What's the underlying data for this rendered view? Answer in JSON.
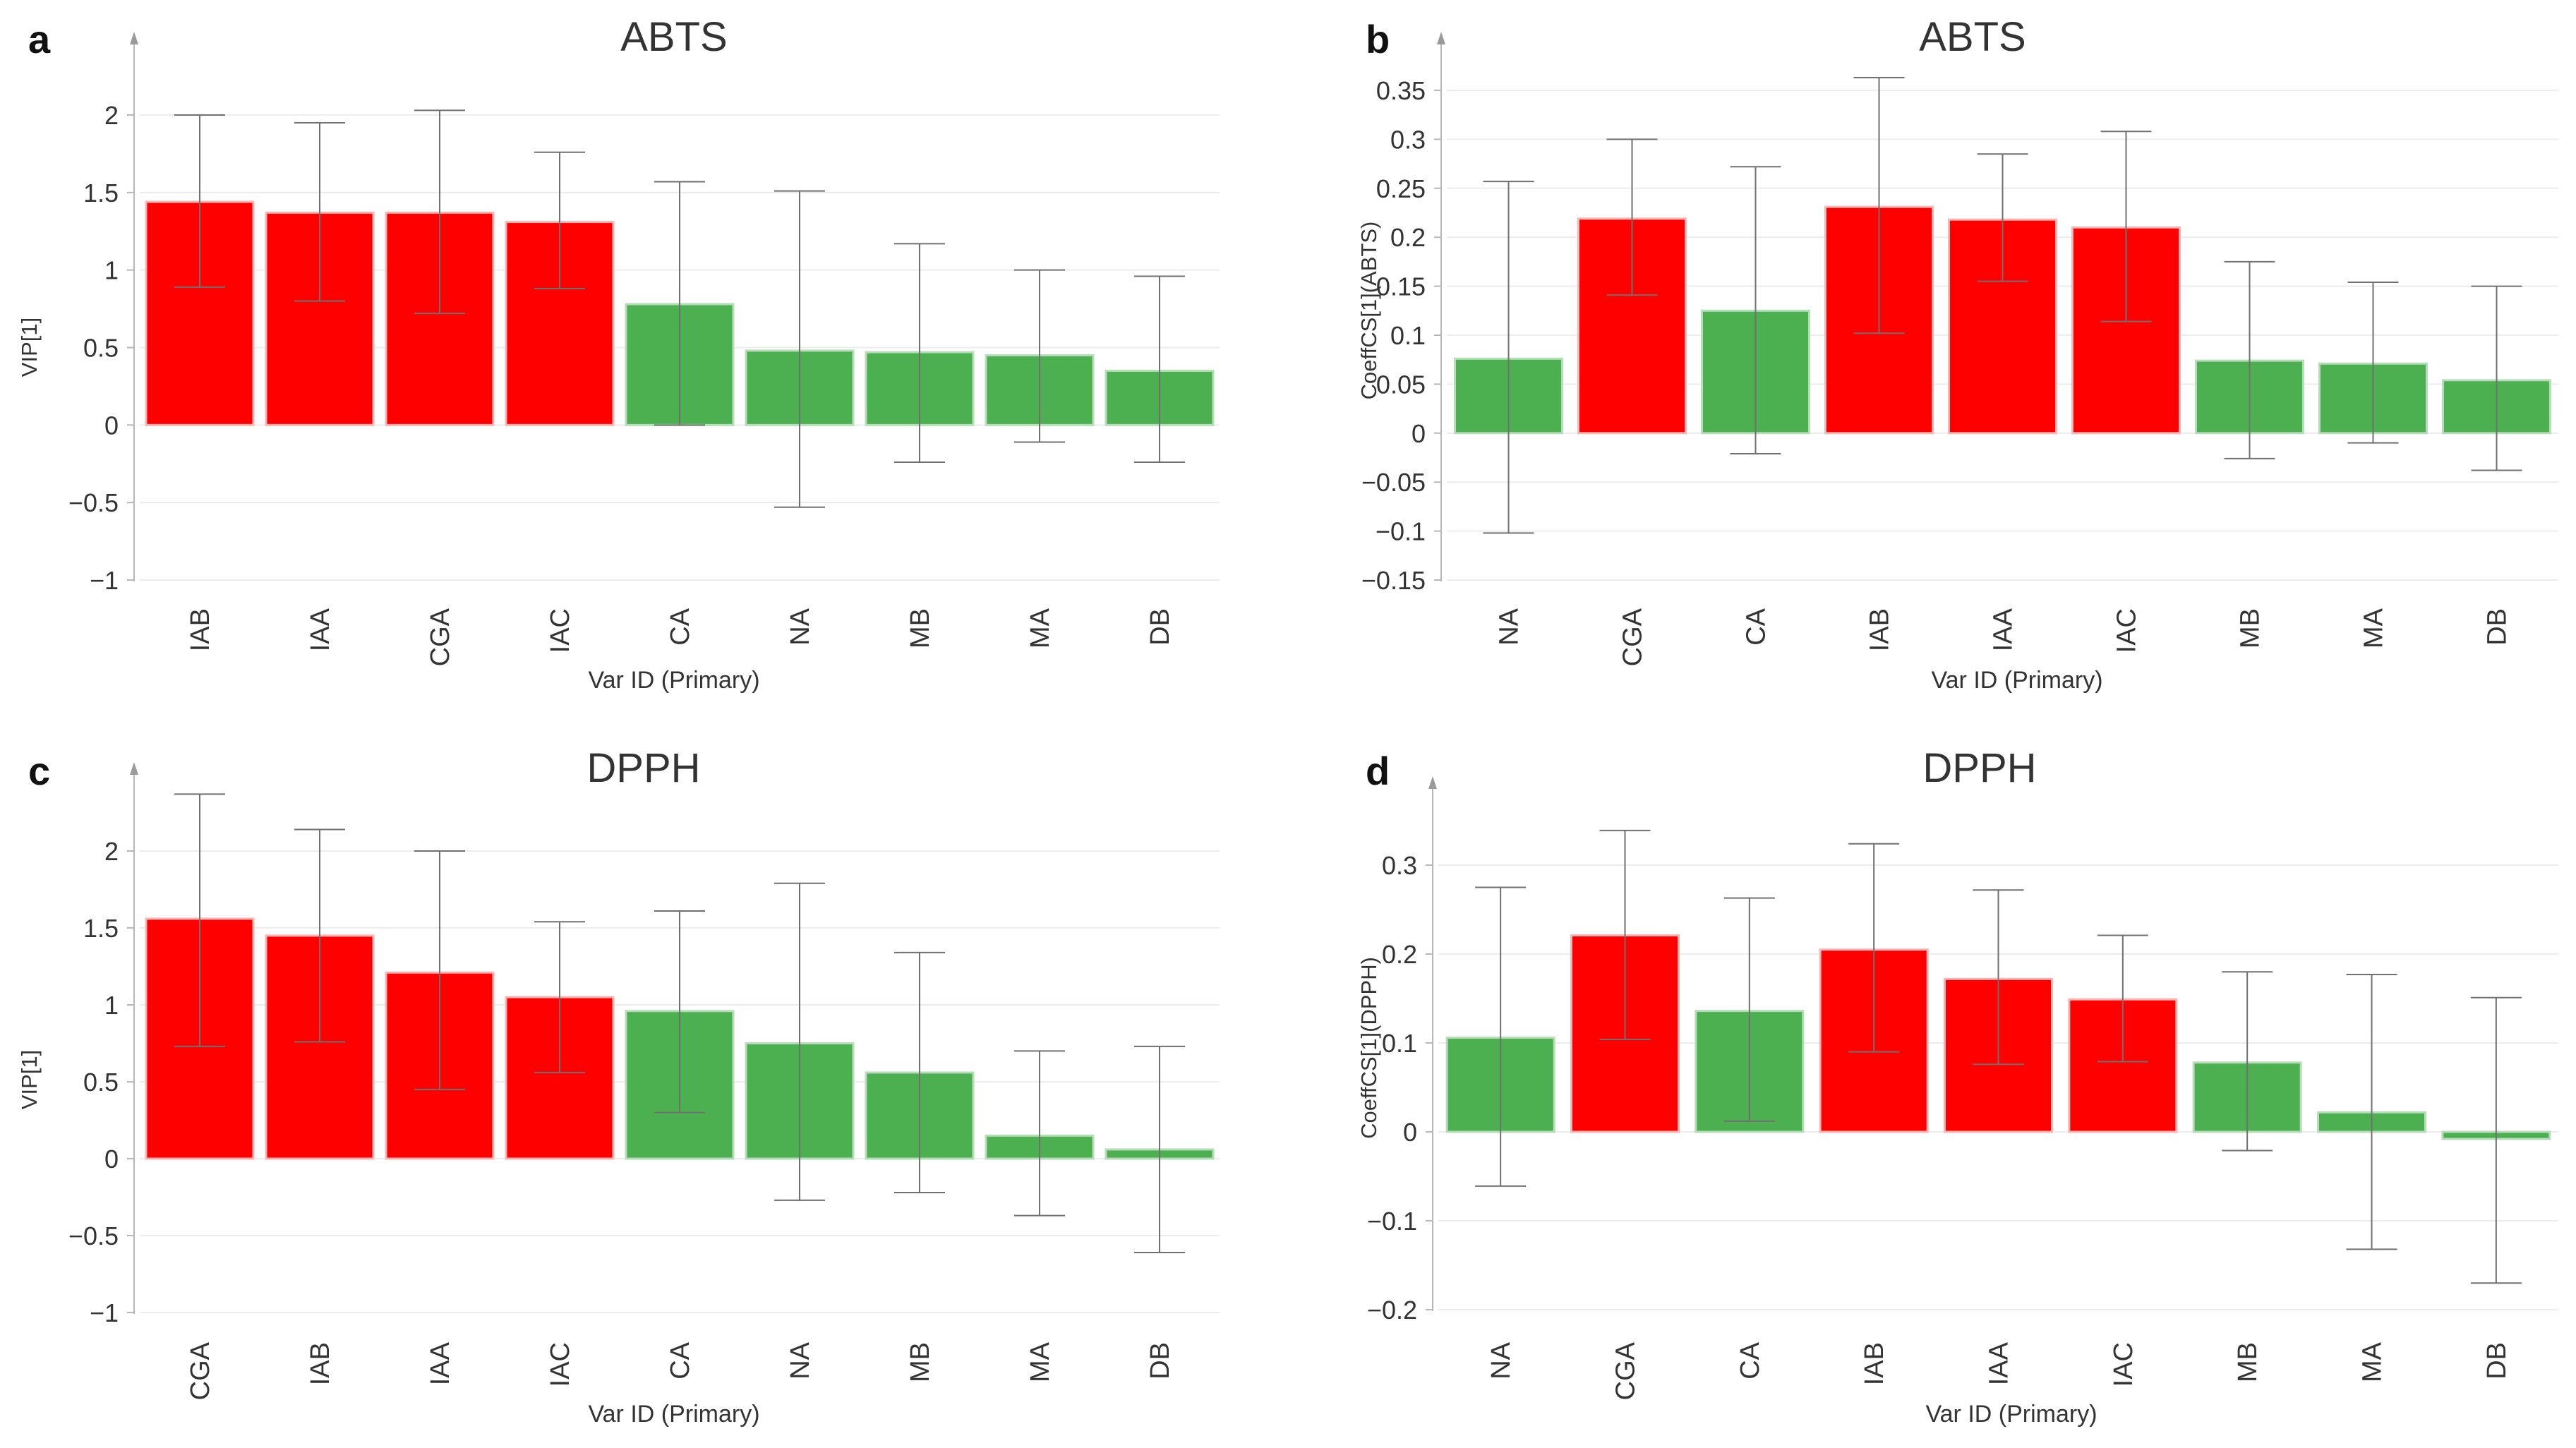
{
  "colors": {
    "important": "#fe0000",
    "not_important": "#4caf50",
    "grid": "#ececec",
    "axis": "#b8b8b8",
    "error_bar": "#707070"
  },
  "chart_data": [
    {
      "panel": "a",
      "type": "bar",
      "title": "ABTS",
      "xlabel": "Var ID (Primary)",
      "ylabel": "VIP[1]",
      "ylim": [
        -1,
        2.4
      ],
      "yticks": [
        -1,
        -0.5,
        0,
        0.5,
        1,
        1.5,
        2
      ],
      "ytick_labels": [
        "−1",
        "−0.5",
        "0",
        "0.5",
        "1",
        "1.5",
        "2"
      ],
      "categories": [
        "IAB",
        "IAA",
        "CGA",
        "IAC",
        "CA",
        "NA",
        "MB",
        "MA",
        "DB"
      ],
      "values": [
        1.44,
        1.37,
        1.37,
        1.31,
        0.78,
        0.48,
        0.47,
        0.45,
        0.35
      ],
      "error_low": [
        0.89,
        0.8,
        0.72,
        0.88,
        0.0,
        -0.53,
        -0.24,
        -0.11,
        -0.24
      ],
      "error_high": [
        2.0,
        1.95,
        2.03,
        1.76,
        1.57,
        1.51,
        1.17,
        1.0,
        0.96
      ],
      "colors": [
        "important",
        "important",
        "important",
        "important",
        "not_important",
        "not_important",
        "not_important",
        "not_important",
        "not_important"
      ]
    },
    {
      "panel": "b",
      "type": "bar",
      "title": "ABTS",
      "xlabel": "Var ID (Primary)",
      "ylabel": "CoeffCS[1](ABTS)",
      "ylim": [
        -0.15,
        0.38
      ],
      "yticks": [
        -0.15,
        -0.1,
        -0.05,
        0,
        0.05,
        0.1,
        0.15,
        0.2,
        0.25,
        0.3,
        0.35
      ],
      "ytick_labels": [
        "−0.15",
        "−0.1",
        "−0.05",
        "0",
        "0.05",
        "0.1",
        "0.15",
        "0.2",
        "0.25",
        "0.3",
        "0.35"
      ],
      "categories": [
        "NA",
        "CGA",
        "CA",
        "IAB",
        "IAA",
        "IAC",
        "MB",
        "MA",
        "DB"
      ],
      "values": [
        0.076,
        0.219,
        0.125,
        0.231,
        0.218,
        0.21,
        0.074,
        0.071,
        0.054
      ],
      "error_low": [
        -0.102,
        0.141,
        -0.021,
        0.102,
        0.155,
        0.114,
        -0.026,
        -0.01,
        -0.038
      ],
      "error_high": [
        0.257,
        0.3,
        0.272,
        0.363,
        0.285,
        0.308,
        0.175,
        0.154,
        0.15
      ],
      "colors": [
        "not_important",
        "important",
        "not_important",
        "important",
        "important",
        "important",
        "not_important",
        "not_important",
        "not_important"
      ]
    },
    {
      "panel": "c",
      "type": "bar",
      "title": "DPPH",
      "xlabel": "Var ID (Primary)",
      "ylabel": "VIP[1]",
      "ylim": [
        -1,
        2.4
      ],
      "yticks": [
        -1,
        -0.5,
        0,
        0.5,
        1,
        1.5,
        2
      ],
      "ytick_labels": [
        "−1",
        "−0.5",
        "0",
        "0.5",
        "1",
        "1.5",
        "2"
      ],
      "categories": [
        "CGA",
        "IAB",
        "IAA",
        "IAC",
        "CA",
        "NA",
        "MB",
        "MA",
        "DB"
      ],
      "values": [
        1.56,
        1.45,
        1.21,
        1.05,
        0.96,
        0.75,
        0.56,
        0.15,
        0.06
      ],
      "error_low": [
        0.73,
        0.76,
        0.45,
        0.56,
        0.3,
        -0.27,
        -0.22,
        -0.37,
        -0.61
      ],
      "error_high": [
        2.37,
        2.14,
        2.0,
        1.54,
        1.61,
        1.79,
        1.34,
        0.7,
        0.73
      ],
      "colors": [
        "important",
        "important",
        "important",
        "important",
        "not_important",
        "not_important",
        "not_important",
        "not_important",
        "not_important"
      ]
    },
    {
      "panel": "d",
      "type": "bar",
      "title": "DPPH",
      "xlabel": "Var ID (Primary)",
      "ylabel": "CoeffCS[1](DPPH)",
      "ylim": [
        -0.2,
        0.36
      ],
      "yticks": [
        -0.2,
        -0.1,
        0,
        0.1,
        0.2,
        0.3
      ],
      "ytick_labels": [
        "−0.2",
        "−0.1",
        "0",
        "0.1",
        "0.2",
        "0.3"
      ],
      "categories": [
        "NA",
        "CGA",
        "CA",
        "IAB",
        "IAA",
        "IAC",
        "MB",
        "MA",
        "DB"
      ],
      "values": [
        0.106,
        0.221,
        0.136,
        0.205,
        0.172,
        0.149,
        0.078,
        0.022,
        -0.008
      ],
      "error_low": [
        -0.061,
        0.104,
        0.012,
        0.09,
        0.076,
        0.079,
        -0.021,
        -0.132,
        -0.17
      ],
      "error_high": [
        0.275,
        0.339,
        0.263,
        0.324,
        0.272,
        0.221,
        0.18,
        0.177,
        0.151
      ],
      "colors": [
        "not_important",
        "important",
        "not_important",
        "important",
        "important",
        "important",
        "not_important",
        "not_important",
        "not_important"
      ]
    }
  ]
}
